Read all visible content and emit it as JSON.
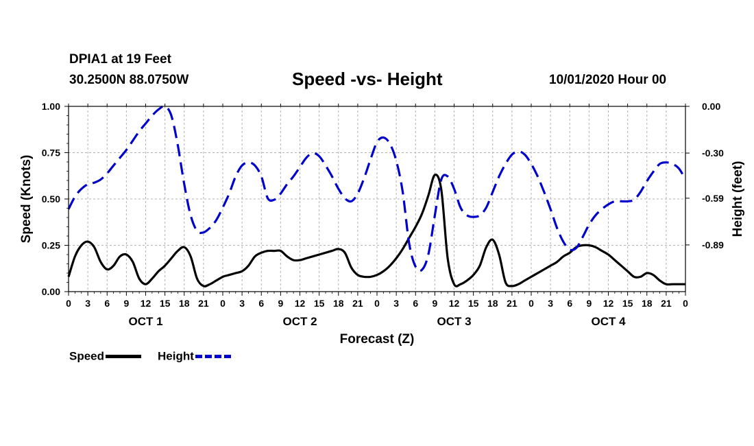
{
  "header": {
    "station": "DPIA1 at 19 Feet",
    "coords": "30.2500N 88.0750W",
    "title": "Speed -vs- Height",
    "datetime": "10/01/2020 Hour 00"
  },
  "legend": {
    "speed_label": "Speed",
    "height_label": "Height"
  },
  "colors": {
    "speed": "#000000",
    "height": "#0000cc",
    "grid": "#b0b0b0"
  },
  "chart_data": {
    "type": "line",
    "title": "Speed -vs- Height",
    "xlabel": "Forecast (Z)",
    "ylabel": "Speed (Knots)",
    "y2label": "Height (feet)",
    "x_range_hours": [
      0,
      96
    ],
    "x_ticks": [
      {
        "h": 0,
        "label": "0"
      },
      {
        "h": 3,
        "label": "3"
      },
      {
        "h": 6,
        "label": "6"
      },
      {
        "h": 9,
        "label": "9"
      },
      {
        "h": 12,
        "label": "12"
      },
      {
        "h": 15,
        "label": "15"
      },
      {
        "h": 18,
        "label": "18"
      },
      {
        "h": 21,
        "label": "21"
      },
      {
        "h": 24,
        "label": "0"
      },
      {
        "h": 27,
        "label": "3"
      },
      {
        "h": 30,
        "label": "6"
      },
      {
        "h": 33,
        "label": "9"
      },
      {
        "h": 36,
        "label": "12"
      },
      {
        "h": 39,
        "label": "15"
      },
      {
        "h": 42,
        "label": "18"
      },
      {
        "h": 45,
        "label": "21"
      },
      {
        "h": 48,
        "label": "0"
      },
      {
        "h": 51,
        "label": "3"
      },
      {
        "h": 54,
        "label": "6"
      },
      {
        "h": 57,
        "label": "9"
      },
      {
        "h": 60,
        "label": "12"
      },
      {
        "h": 63,
        "label": "15"
      },
      {
        "h": 66,
        "label": "18"
      },
      {
        "h": 69,
        "label": "21"
      },
      {
        "h": 72,
        "label": "0"
      },
      {
        "h": 75,
        "label": "3"
      },
      {
        "h": 78,
        "label": "6"
      },
      {
        "h": 81,
        "label": "9"
      },
      {
        "h": 84,
        "label": "12"
      },
      {
        "h": 87,
        "label": "15"
      },
      {
        "h": 90,
        "label": "18"
      },
      {
        "h": 93,
        "label": "21"
      },
      {
        "h": 96,
        "label": "0"
      }
    ],
    "day_labels": [
      {
        "h": 12,
        "label": "OCT 1"
      },
      {
        "h": 36,
        "label": "OCT 2"
      },
      {
        "h": 60,
        "label": "OCT 3"
      },
      {
        "h": 84,
        "label": "OCT 4"
      }
    ],
    "y_left": {
      "range": [
        0,
        1.0
      ],
      "ticks": [
        {
          "v": 0.0,
          "label": "0.00"
        },
        {
          "v": 0.25,
          "label": "0.25"
        },
        {
          "v": 0.5,
          "label": "0.50"
        },
        {
          "v": 0.75,
          "label": "0.75"
        },
        {
          "v": 1.0,
          "label": "1.00"
        }
      ]
    },
    "y_right": {
      "range": [
        -1.19,
        0.0
      ],
      "ticks": [
        {
          "v": 0.0,
          "label": "0.00"
        },
        {
          "v": -0.3,
          "label": "-0.30"
        },
        {
          "v": -0.59,
          "label": "-0.59"
        },
        {
          "v": -0.89,
          "label": "-0.89"
        }
      ]
    },
    "series": [
      {
        "name": "Speed",
        "axis": "left",
        "style": "solid",
        "points": [
          [
            0,
            0.08
          ],
          [
            1,
            0.19
          ],
          [
            2,
            0.25
          ],
          [
            3,
            0.27
          ],
          [
            4,
            0.24
          ],
          [
            5,
            0.16
          ],
          [
            6,
            0.12
          ],
          [
            7,
            0.14
          ],
          [
            8,
            0.19
          ],
          [
            9,
            0.2
          ],
          [
            10,
            0.16
          ],
          [
            11,
            0.07
          ],
          [
            12,
            0.04
          ],
          [
            13,
            0.07
          ],
          [
            14,
            0.11
          ],
          [
            15,
            0.14
          ],
          [
            16,
            0.18
          ],
          [
            17,
            0.22
          ],
          [
            18,
            0.24
          ],
          [
            19,
            0.19
          ],
          [
            20,
            0.07
          ],
          [
            21,
            0.03
          ],
          [
            22,
            0.04
          ],
          [
            23,
            0.06
          ],
          [
            24,
            0.08
          ],
          [
            25,
            0.09
          ],
          [
            26,
            0.1
          ],
          [
            27,
            0.11
          ],
          [
            28,
            0.14
          ],
          [
            29,
            0.19
          ],
          [
            30,
            0.21
          ],
          [
            31,
            0.22
          ],
          [
            32,
            0.22
          ],
          [
            33,
            0.22
          ],
          [
            34,
            0.19
          ],
          [
            35,
            0.17
          ],
          [
            36,
            0.17
          ],
          [
            37,
            0.18
          ],
          [
            38,
            0.19
          ],
          [
            39,
            0.2
          ],
          [
            40,
            0.21
          ],
          [
            41,
            0.22
          ],
          [
            42,
            0.23
          ],
          [
            43,
            0.21
          ],
          [
            44,
            0.13
          ],
          [
            45,
            0.09
          ],
          [
            46,
            0.08
          ],
          [
            47,
            0.08
          ],
          [
            48,
            0.09
          ],
          [
            49,
            0.11
          ],
          [
            50,
            0.14
          ],
          [
            51,
            0.18
          ],
          [
            52,
            0.23
          ],
          [
            53,
            0.29
          ],
          [
            54,
            0.35
          ],
          [
            55,
            0.42
          ],
          [
            56,
            0.52
          ],
          [
            57,
            0.63
          ],
          [
            58,
            0.55
          ],
          [
            59,
            0.18
          ],
          [
            60,
            0.04
          ],
          [
            61,
            0.04
          ],
          [
            62,
            0.06
          ],
          [
            63,
            0.09
          ],
          [
            64,
            0.14
          ],
          [
            65,
            0.24
          ],
          [
            66,
            0.28
          ],
          [
            67,
            0.2
          ],
          [
            68,
            0.05
          ],
          [
            69,
            0.03
          ],
          [
            70,
            0.04
          ],
          [
            71,
            0.06
          ],
          [
            72,
            0.08
          ],
          [
            73,
            0.1
          ],
          [
            74,
            0.12
          ],
          [
            75,
            0.14
          ],
          [
            76,
            0.16
          ],
          [
            77,
            0.19
          ],
          [
            78,
            0.21
          ],
          [
            79,
            0.24
          ],
          [
            80,
            0.25
          ],
          [
            81,
            0.25
          ],
          [
            82,
            0.24
          ],
          [
            83,
            0.22
          ],
          [
            84,
            0.2
          ],
          [
            85,
            0.17
          ],
          [
            86,
            0.14
          ],
          [
            87,
            0.11
          ],
          [
            88,
            0.08
          ],
          [
            89,
            0.08
          ],
          [
            90,
            0.1
          ],
          [
            91,
            0.09
          ],
          [
            92,
            0.06
          ],
          [
            93,
            0.04
          ],
          [
            94,
            0.04
          ],
          [
            95,
            0.04
          ],
          [
            96,
            0.04
          ]
        ]
      },
      {
        "name": "Height",
        "axis": "right",
        "style": "dashed",
        "points": [
          [
            0,
            -0.66
          ],
          [
            1,
            -0.58
          ],
          [
            2,
            -0.53
          ],
          [
            3,
            -0.5
          ],
          [
            4,
            -0.49
          ],
          [
            5,
            -0.47
          ],
          [
            6,
            -0.43
          ],
          [
            7,
            -0.38
          ],
          [
            8,
            -0.33
          ],
          [
            9,
            -0.28
          ],
          [
            10,
            -0.22
          ],
          [
            11,
            -0.16
          ],
          [
            12,
            -0.11
          ],
          [
            13,
            -0.06
          ],
          [
            14,
            -0.02
          ],
          [
            15,
            0.0
          ],
          [
            16,
            -0.06
          ],
          [
            17,
            -0.25
          ],
          [
            18,
            -0.5
          ],
          [
            19,
            -0.7
          ],
          [
            20,
            -0.8
          ],
          [
            21,
            -0.81
          ],
          [
            22,
            -0.78
          ],
          [
            23,
            -0.73
          ],
          [
            24,
            -0.65
          ],
          [
            25,
            -0.56
          ],
          [
            26,
            -0.45
          ],
          [
            27,
            -0.38
          ],
          [
            28,
            -0.36
          ],
          [
            29,
            -0.38
          ],
          [
            30,
            -0.45
          ],
          [
            31,
            -0.59
          ],
          [
            32,
            -0.6
          ],
          [
            33,
            -0.56
          ],
          [
            34,
            -0.5
          ],
          [
            35,
            -0.45
          ],
          [
            36,
            -0.39
          ],
          [
            37,
            -0.33
          ],
          [
            38,
            -0.3
          ],
          [
            39,
            -0.32
          ],
          [
            40,
            -0.38
          ],
          [
            41,
            -0.45
          ],
          [
            42,
            -0.53
          ],
          [
            43,
            -0.59
          ],
          [
            44,
            -0.61
          ],
          [
            45,
            -0.56
          ],
          [
            46,
            -0.46
          ],
          [
            47,
            -0.34
          ],
          [
            48,
            -0.23
          ],
          [
            49,
            -0.2
          ],
          [
            50,
            -0.24
          ],
          [
            51,
            -0.35
          ],
          [
            52,
            -0.55
          ],
          [
            53,
            -0.88
          ],
          [
            54,
            -1.03
          ],
          [
            55,
            -1.05
          ],
          [
            56,
            -0.95
          ],
          [
            57,
            -0.7
          ],
          [
            58,
            -0.47
          ],
          [
            59,
            -0.45
          ],
          [
            60,
            -0.53
          ],
          [
            61,
            -0.65
          ],
          [
            62,
            -0.7
          ],
          [
            63,
            -0.71
          ],
          [
            64,
            -0.7
          ],
          [
            65,
            -0.65
          ],
          [
            66,
            -0.55
          ],
          [
            67,
            -0.45
          ],
          [
            68,
            -0.37
          ],
          [
            69,
            -0.31
          ],
          [
            70,
            -0.29
          ],
          [
            71,
            -0.31
          ],
          [
            72,
            -0.37
          ],
          [
            73,
            -0.45
          ],
          [
            74,
            -0.55
          ],
          [
            75,
            -0.66
          ],
          [
            76,
            -0.78
          ],
          [
            77,
            -0.87
          ],
          [
            78,
            -0.92
          ],
          [
            79,
            -0.91
          ],
          [
            80,
            -0.84
          ],
          [
            81,
            -0.76
          ],
          [
            82,
            -0.7
          ],
          [
            83,
            -0.66
          ],
          [
            84,
            -0.63
          ],
          [
            85,
            -0.61
          ],
          [
            86,
            -0.61
          ],
          [
            87,
            -0.61
          ],
          [
            88,
            -0.6
          ],
          [
            89,
            -0.55
          ],
          [
            90,
            -0.48
          ],
          [
            91,
            -0.42
          ],
          [
            92,
            -0.37
          ],
          [
            93,
            -0.36
          ],
          [
            94,
            -0.37
          ],
          [
            95,
            -0.4
          ],
          [
            96,
            -0.47
          ]
        ]
      }
    ]
  }
}
